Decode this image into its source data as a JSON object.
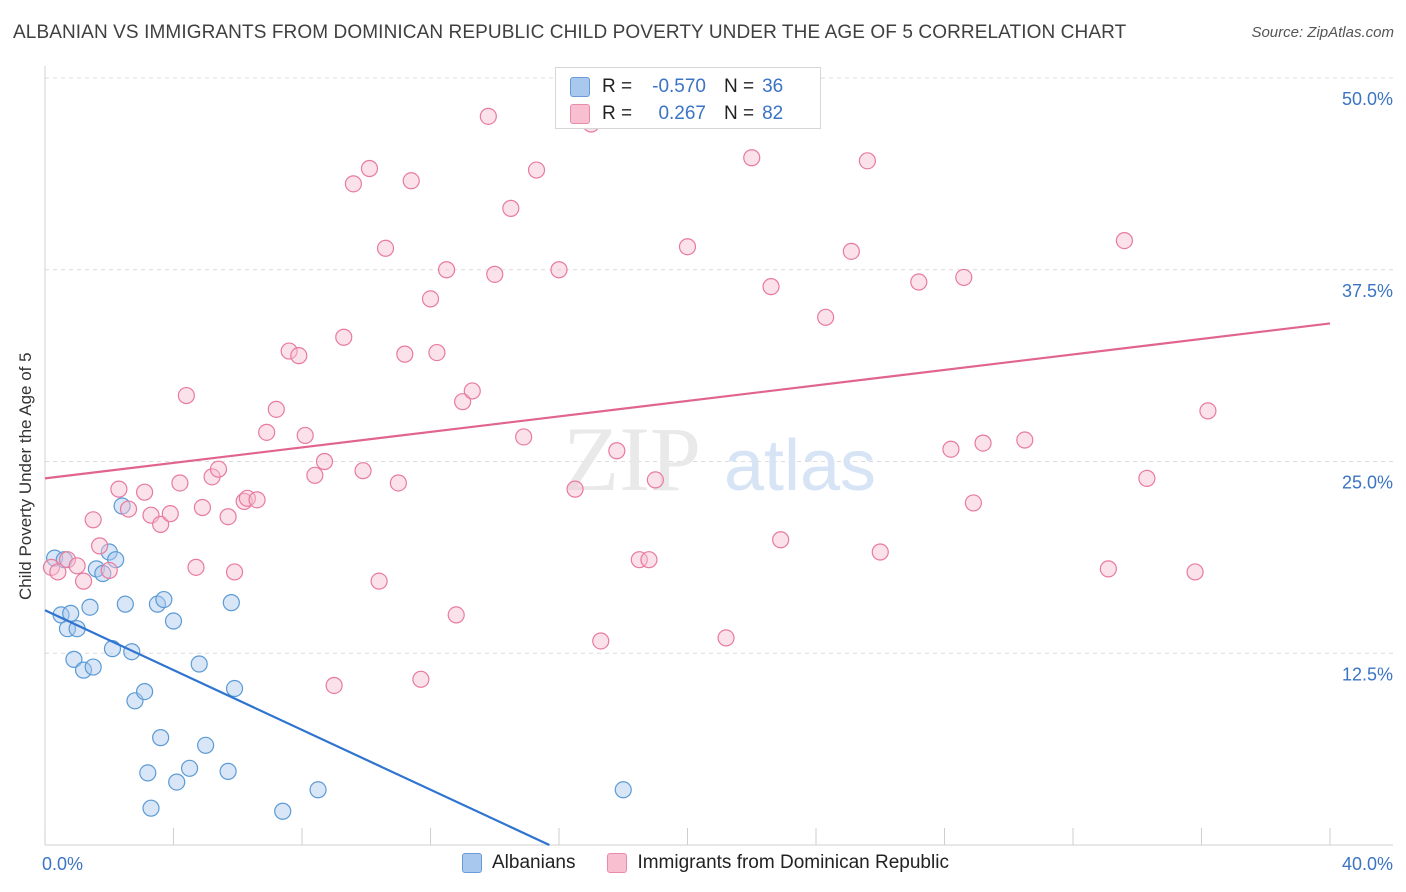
{
  "title": "ALBANIAN VS IMMIGRANTS FROM DOMINICAN REPUBLIC CHILD POVERTY UNDER THE AGE OF 5 CORRELATION CHART",
  "source": "Source: ZipAtlas.com",
  "watermark": {
    "zip": "ZIP",
    "atlas": "atlas"
  },
  "legend": {
    "rows": [
      {
        "r_label": "R =",
        "r_value": "-0.570",
        "n_label": "N =",
        "n_value": "36",
        "color": "#a9c8ee",
        "border": "#6a9bd8"
      },
      {
        "r_label": "R =",
        "r_value": "0.267",
        "n_label": "N =",
        "n_value": "82",
        "color": "#f7bfd0",
        "border": "#e98aa9"
      }
    ]
  },
  "bottom_legend": [
    {
      "label": "Albanians",
      "color": "#a9c8ee",
      "border": "#6a9bd8"
    },
    {
      "label": "Immigrants from Dominican Republic",
      "color": "#f7bfd0",
      "border": "#e98aa9"
    }
  ],
  "chart_data": {
    "type": "scatter",
    "xlabel": "",
    "ylabel": "Child Poverty Under the Age of 5",
    "xlim": [
      0,
      40
    ],
    "ylim": [
      0,
      50
    ],
    "x_tick_labels": [
      {
        "value": 0,
        "label": "0.0%"
      },
      {
        "value": 40,
        "label": "40.0%"
      }
    ],
    "y_tick_labels": [
      {
        "value": 12.5,
        "label": "12.5%"
      },
      {
        "value": 25,
        "label": "25.0%"
      },
      {
        "value": 37.5,
        "label": "37.5%"
      },
      {
        "value": 50,
        "label": "50.0%"
      }
    ],
    "series": [
      {
        "name": "Albanians",
        "color": "#5b9bd5",
        "fill": "rgba(169,200,238,0.45)",
        "trend": {
          "color": "#2e74d0",
          "x": [
            0,
            15.7
          ],
          "y": [
            15.3,
            0
          ]
        },
        "points": [
          [
            0.3,
            18.7
          ],
          [
            0.5,
            15.0
          ],
          [
            0.6,
            18.6
          ],
          [
            0.7,
            14.1
          ],
          [
            0.8,
            15.1
          ],
          [
            0.9,
            12.1
          ],
          [
            1.0,
            14.1
          ],
          [
            1.2,
            11.4
          ],
          [
            1.4,
            15.5
          ],
          [
            1.5,
            11.6
          ],
          [
            1.6,
            18.0
          ],
          [
            1.8,
            17.7
          ],
          [
            2.0,
            19.1
          ],
          [
            2.1,
            12.8
          ],
          [
            2.2,
            18.6
          ],
          [
            2.4,
            22.1
          ],
          [
            2.5,
            15.7
          ],
          [
            2.7,
            12.6
          ],
          [
            2.8,
            9.4
          ],
          [
            3.1,
            10.0
          ],
          [
            3.2,
            4.7
          ],
          [
            3.3,
            2.4
          ],
          [
            3.5,
            15.7
          ],
          [
            3.6,
            7.0
          ],
          [
            3.7,
            16.0
          ],
          [
            4.0,
            14.6
          ],
          [
            4.1,
            4.1
          ],
          [
            4.5,
            5.0
          ],
          [
            4.8,
            11.8
          ],
          [
            5.0,
            6.5
          ],
          [
            5.7,
            4.8
          ],
          [
            5.8,
            15.8
          ],
          [
            5.9,
            10.2
          ],
          [
            7.4,
            2.2
          ],
          [
            8.5,
            3.6
          ],
          [
            18.0,
            3.6
          ]
        ]
      },
      {
        "name": "Immigrants from Dominican Republic",
        "color": "#e87aa0",
        "fill": "rgba(247,191,208,0.45)",
        "trend": {
          "color": "#e0648f",
          "x": [
            0,
            40
          ],
          "y": [
            23.9,
            34.0
          ]
        },
        "points": [
          [
            0.2,
            18.1
          ],
          [
            0.4,
            17.8
          ],
          [
            0.7,
            18.6
          ],
          [
            1.0,
            18.2
          ],
          [
            1.2,
            17.2
          ],
          [
            1.5,
            21.2
          ],
          [
            1.7,
            19.5
          ],
          [
            2.0,
            17.9
          ],
          [
            2.3,
            23.2
          ],
          [
            2.6,
            21.9
          ],
          [
            3.1,
            23.0
          ],
          [
            3.3,
            21.5
          ],
          [
            3.6,
            20.9
          ],
          [
            3.9,
            21.6
          ],
          [
            4.2,
            23.6
          ],
          [
            4.4,
            29.3
          ],
          [
            4.7,
            18.1
          ],
          [
            4.9,
            22.0
          ],
          [
            5.2,
            24.0
          ],
          [
            5.4,
            24.5
          ],
          [
            5.7,
            21.4
          ],
          [
            5.9,
            17.8
          ],
          [
            6.2,
            22.4
          ],
          [
            6.3,
            22.6
          ],
          [
            6.6,
            22.5
          ],
          [
            6.9,
            26.9
          ],
          [
            7.2,
            28.4
          ],
          [
            7.6,
            32.2
          ],
          [
            7.9,
            31.9
          ],
          [
            8.1,
            26.7
          ],
          [
            8.4,
            24.1
          ],
          [
            8.7,
            25.0
          ],
          [
            9.0,
            10.4
          ],
          [
            9.3,
            33.1
          ],
          [
            9.6,
            43.1
          ],
          [
            9.9,
            24.4
          ],
          [
            10.1,
            44.1
          ],
          [
            10.4,
            17.2
          ],
          [
            10.6,
            38.9
          ],
          [
            11.0,
            23.6
          ],
          [
            11.2,
            32.0
          ],
          [
            11.4,
            43.3
          ],
          [
            11.7,
            10.8
          ],
          [
            12.0,
            35.6
          ],
          [
            12.2,
            32.1
          ],
          [
            12.5,
            37.5
          ],
          [
            12.8,
            15.0
          ],
          [
            13.0,
            28.9
          ],
          [
            13.3,
            29.6
          ],
          [
            13.8,
            47.5
          ],
          [
            14.0,
            37.2
          ],
          [
            14.5,
            41.5
          ],
          [
            14.9,
            26.6
          ],
          [
            15.3,
            44.0
          ],
          [
            16.0,
            37.5
          ],
          [
            16.5,
            23.2
          ],
          [
            17.0,
            47.0
          ],
          [
            17.3,
            13.3
          ],
          [
            17.8,
            25.7
          ],
          [
            18.5,
            18.6
          ],
          [
            19.0,
            23.8
          ],
          [
            20.0,
            39.0
          ],
          [
            21.2,
            13.5
          ],
          [
            22.0,
            44.8
          ],
          [
            22.6,
            36.4
          ],
          [
            22.9,
            19.9
          ],
          [
            24.3,
            34.4
          ],
          [
            25.1,
            38.7
          ],
          [
            25.6,
            44.6
          ],
          [
            26.0,
            19.1
          ],
          [
            27.2,
            36.7
          ],
          [
            28.2,
            25.8
          ],
          [
            28.6,
            37.0
          ],
          [
            28.9,
            22.3
          ],
          [
            29.2,
            26.2
          ],
          [
            30.5,
            26.4
          ],
          [
            33.1,
            18.0
          ],
          [
            33.6,
            39.4
          ],
          [
            34.3,
            23.9
          ],
          [
            35.8,
            17.8
          ],
          [
            36.2,
            28.3
          ],
          [
            18.8,
            18.6
          ]
        ]
      }
    ]
  }
}
